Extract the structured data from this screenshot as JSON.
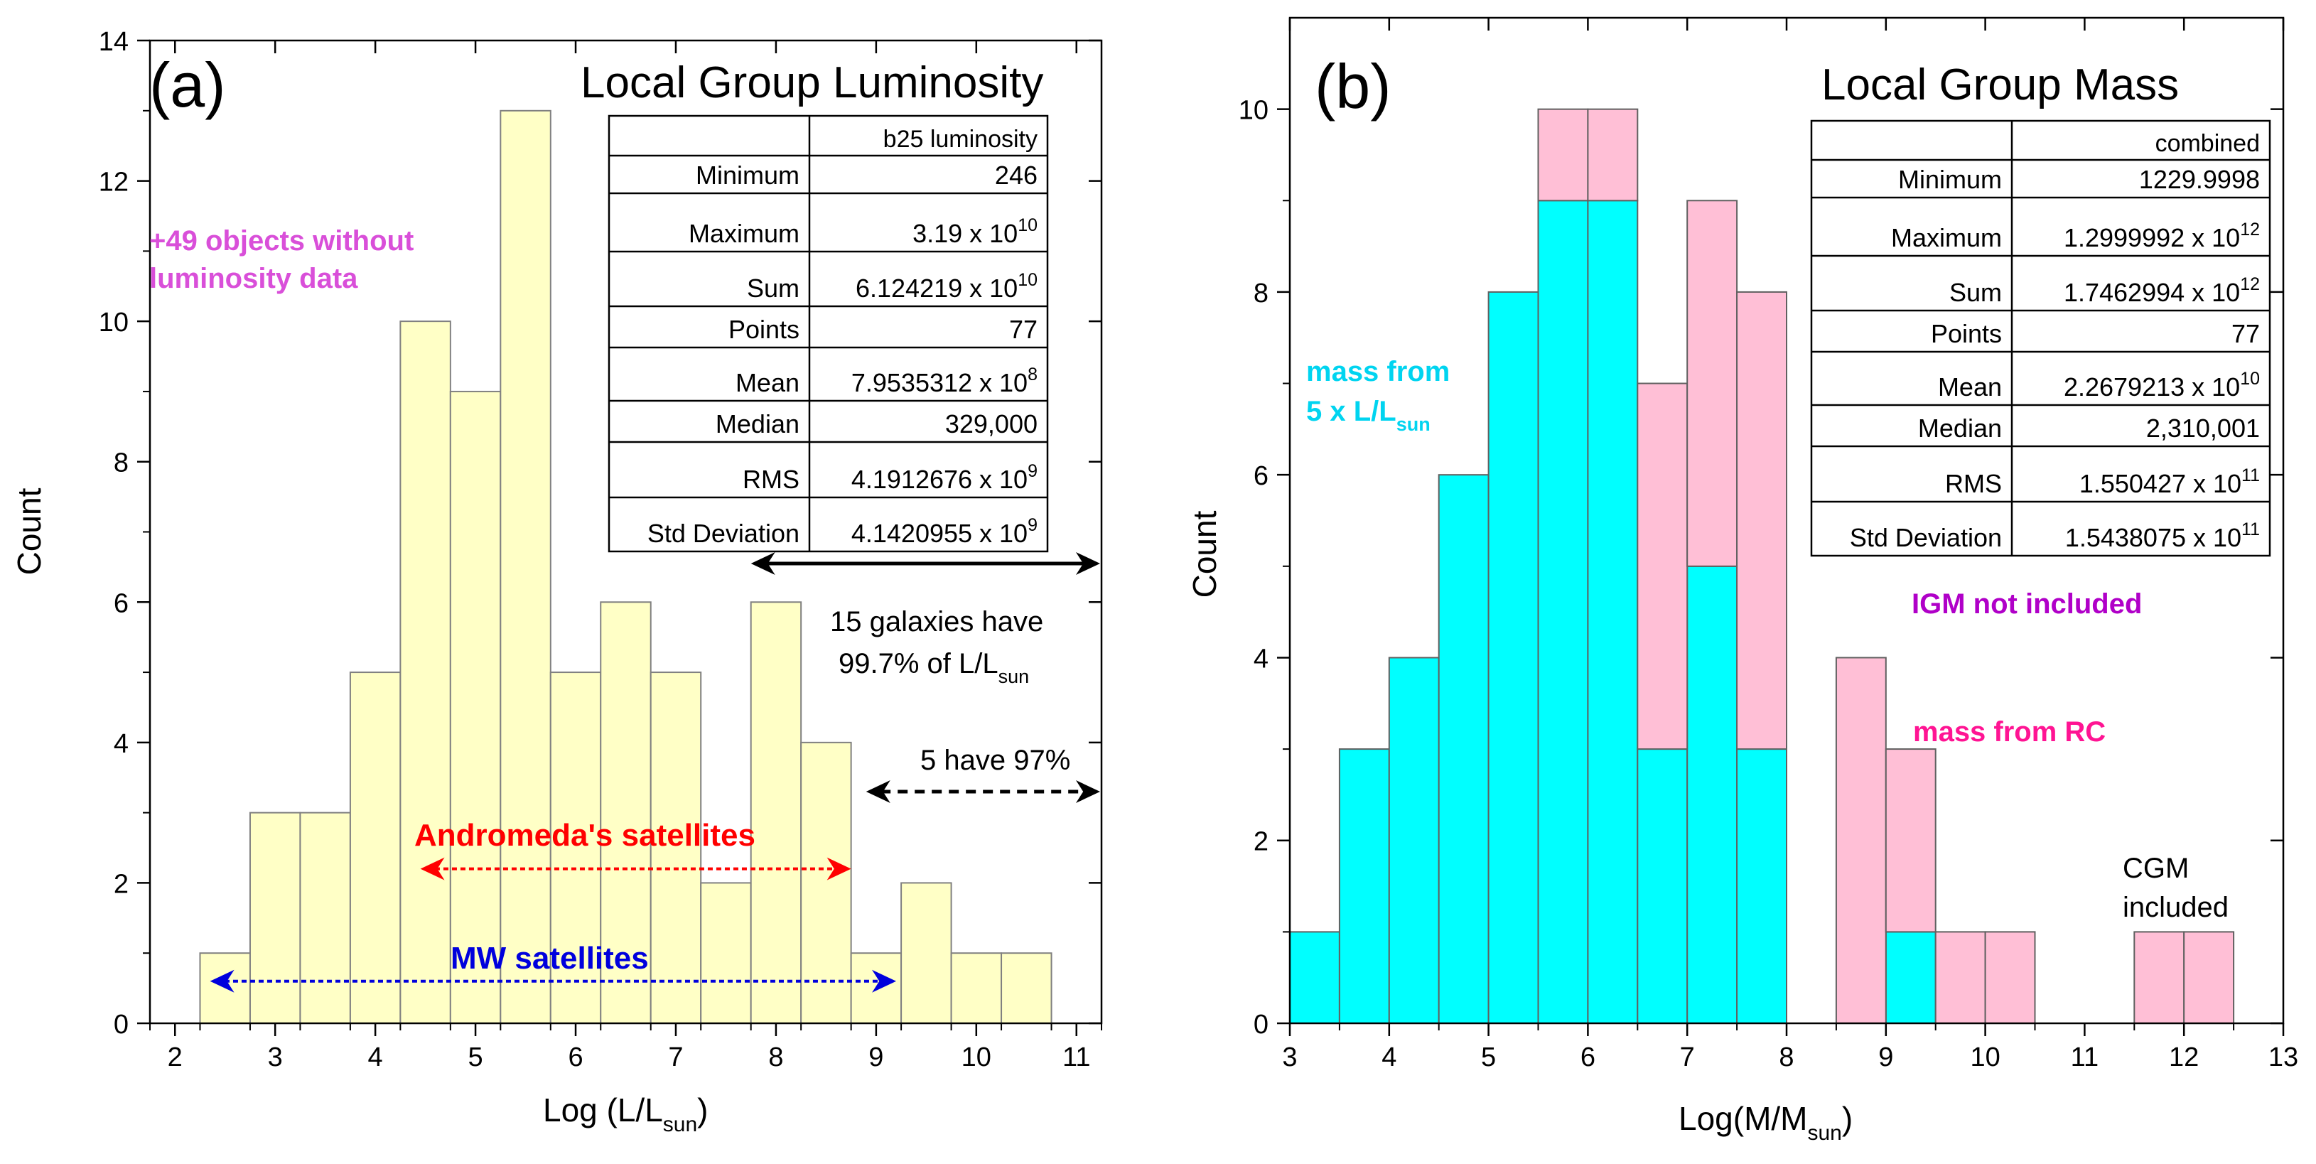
{
  "colors": {
    "lum_bar": "#ffffc6",
    "cyan": "#00ffff",
    "pink": "#ffbfd6",
    "magenta_text": "#d94fd9",
    "red_arrow": "#ff0000",
    "blue_arrow": "#0000dd",
    "cyan_text": "#00d4f0",
    "purple_text": "#b000c8",
    "pink_text": "#ff1493"
  },
  "chart_data": [
    {
      "type": "bar",
      "panel": "(a)",
      "title": "Local Group Luminosity",
      "xlabel": "Log (L/L",
      "xlabel_sub": "sun",
      "xlabel_close": ")",
      "ylabel": "Count",
      "xlim": [
        1.75,
        11.25
      ],
      "ylim": [
        0,
        14
      ],
      "xticks": [
        2,
        3,
        4,
        5,
        6,
        7,
        8,
        9,
        10,
        11
      ],
      "yticks": [
        0,
        2,
        4,
        6,
        8,
        10,
        12,
        14
      ],
      "bin_width": 0.5,
      "bins": [
        {
          "start": 2.25,
          "value": 1
        },
        {
          "start": 2.75,
          "value": 3
        },
        {
          "start": 3.25,
          "value": 3
        },
        {
          "start": 3.75,
          "value": 5
        },
        {
          "start": 4.25,
          "value": 10
        },
        {
          "start": 4.75,
          "value": 9
        },
        {
          "start": 5.25,
          "value": 13
        },
        {
          "start": 5.75,
          "value": 5
        },
        {
          "start": 6.25,
          "value": 6
        },
        {
          "start": 6.75,
          "value": 5
        },
        {
          "start": 7.25,
          "value": 2
        },
        {
          "start": 7.75,
          "value": 6
        },
        {
          "start": 8.25,
          "value": 4
        },
        {
          "start": 8.75,
          "value": 1
        },
        {
          "start": 9.25,
          "value": 2
        },
        {
          "start": 9.75,
          "value": 1
        },
        {
          "start": 10.25,
          "value": 1
        }
      ],
      "table": {
        "header": "b25 luminosity",
        "rows": [
          {
            "label": "Minimum",
            "value": "246"
          },
          {
            "label": "Maximum",
            "mantissa": "3.19 x 10",
            "exp": "10"
          },
          {
            "label": "Sum",
            "mantissa": "6.124219 x 10",
            "exp": "10"
          },
          {
            "label": "Points",
            "value": "77"
          },
          {
            "label": "Mean",
            "mantissa": "7.9535312 x 10",
            "exp": "8"
          },
          {
            "label": "Median",
            "value": "329,000"
          },
          {
            "label": "RMS",
            "mantissa": "4.1912676 x 10",
            "exp": "9"
          },
          {
            "label": "Std Deviation",
            "mantissa": "4.1420955 x 10",
            "exp": "9"
          }
        ]
      },
      "annotations": {
        "no_data_line1": "+49 objects without",
        "no_data_line2": "luminosity data",
        "galaxies_line1": "15 galaxies have",
        "galaxies_line2": "99.7% of L/L",
        "galaxies_sub": "sun",
        "five_have": "5 have 97%",
        "andromeda": "Andromeda's satellites",
        "mw": "MW satellites"
      },
      "arrows": {
        "galaxies_span": [
          7.75,
          11.25
        ],
        "five_span": [
          8.9,
          11.25
        ],
        "andromeda_span": [
          4.45,
          8.75
        ],
        "mw_span": [
          2.35,
          9.2
        ]
      }
    },
    {
      "type": "bar",
      "stacked": true,
      "panel": "(b)",
      "title": "Local Group Mass",
      "xlabel": "Log(M/M",
      "xlabel_sub": "sun",
      "xlabel_close": ")",
      "ylabel": "Count",
      "xlim": [
        3,
        13
      ],
      "ylim": [
        0,
        11
      ],
      "xticks": [
        3,
        4,
        5,
        6,
        7,
        8,
        9,
        10,
        11,
        12,
        13
      ],
      "yticks": [
        0,
        2,
        4,
        6,
        8,
        10
      ],
      "bin_width": 0.5,
      "series": [
        {
          "name": "mass from 5 x L/Lsun",
          "color_key": "cyan",
          "bins": [
            {
              "start": 3.0,
              "value": 1
            },
            {
              "start": 3.5,
              "value": 3
            },
            {
              "start": 4.0,
              "value": 4
            },
            {
              "start": 4.5,
              "value": 6
            },
            {
              "start": 5.0,
              "value": 8
            },
            {
              "start": 5.5,
              "value": 9
            },
            {
              "start": 6.0,
              "value": 9
            },
            {
              "start": 6.5,
              "value": 3
            },
            {
              "start": 7.0,
              "value": 5
            },
            {
              "start": 7.5,
              "value": 3
            },
            {
              "start": 9.0,
              "value": 1
            }
          ]
        },
        {
          "name": "mass from RC",
          "color_key": "pink",
          "bins": [
            {
              "start": 5.5,
              "value": 1
            },
            {
              "start": 6.0,
              "value": 1
            },
            {
              "start": 6.5,
              "value": 4
            },
            {
              "start": 7.0,
              "value": 4
            },
            {
              "start": 7.5,
              "value": 5
            },
            {
              "start": 8.5,
              "value": 4
            },
            {
              "start": 9.0,
              "value": 2
            },
            {
              "start": 9.5,
              "value": 1
            },
            {
              "start": 10.0,
              "value": 1
            },
            {
              "start": 11.5,
              "value": 1
            },
            {
              "start": 12.0,
              "value": 1
            }
          ]
        }
      ],
      "table": {
        "header": "combined",
        "rows": [
          {
            "label": "Minimum",
            "value": "1229.9998"
          },
          {
            "label": "Maximum",
            "mantissa": "1.2999992 x 10",
            "exp": "12"
          },
          {
            "label": "Sum",
            "mantissa": "1.7462994 x 10",
            "exp": "12"
          },
          {
            "label": "Points",
            "value": "77"
          },
          {
            "label": "Mean",
            "mantissa": "2.2679213 x 10",
            "exp": "10"
          },
          {
            "label": "Median",
            "value": "2,310,001"
          },
          {
            "label": "RMS",
            "mantissa": "1.550427 x 10",
            "exp": "11"
          },
          {
            "label": "Std Deviation",
            "mantissa": "1.5438075 x 10",
            "exp": "11"
          }
        ]
      },
      "annotations": {
        "mass_lum_line1": "mass from",
        "mass_lum_line2": "5 x L/L",
        "mass_lum_sub": "sun",
        "igm": "IGM not included",
        "mass_rc": "mass from RC",
        "cgm_line1": "CGM",
        "cgm_line2": "included"
      }
    }
  ]
}
